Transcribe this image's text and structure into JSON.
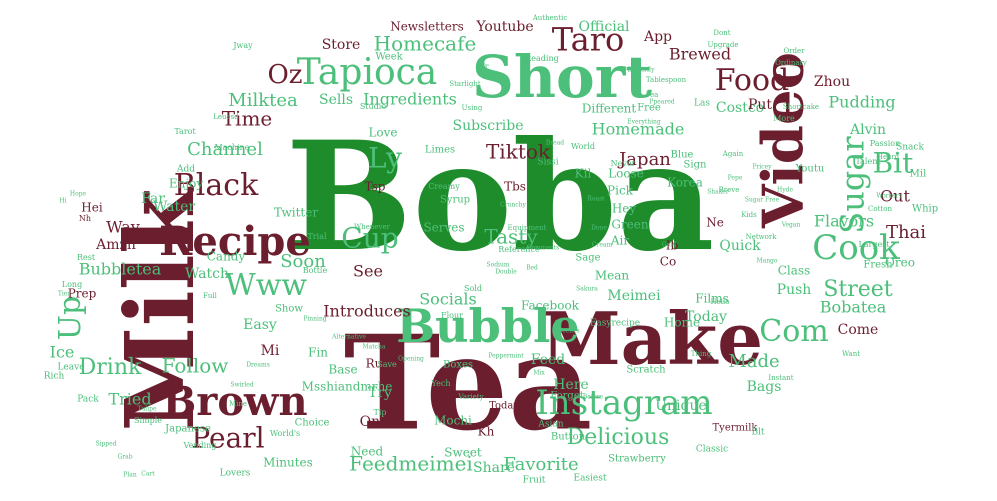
{
  "palette": {
    "green": "#1f8c2b",
    "maroon": "#6b1e2e",
    "light_green": "#4cbf7a"
  },
  "words": [
    {
      "text": "Boba",
      "color": "green"
    },
    {
      "text": "Tea",
      "color": "maroon"
    },
    {
      "text": "Milk",
      "color": "maroon"
    },
    {
      "text": "Make",
      "color": "maroon"
    },
    {
      "text": "Short",
      "color": "light_green"
    },
    {
      "text": "Video",
      "color": "maroon"
    },
    {
      "text": "Recipe",
      "color": "maroon"
    },
    {
      "text": "Brown",
      "color": "maroon"
    },
    {
      "text": "Bubble",
      "color": "light_green"
    },
    {
      "text": "Tapioca",
      "color": "light_green"
    },
    {
      "text": "Instagram",
      "color": "light_green"
    },
    {
      "text": "Food",
      "color": "maroon"
    },
    {
      "text": "Sugar",
      "color": "light_green"
    },
    {
      "text": "Cook",
      "color": "light_green"
    },
    {
      "text": "Taro",
      "color": "maroon"
    },
    {
      "text": "Black",
      "color": "maroon"
    },
    {
      "text": "Com",
      "color": "light_green"
    },
    {
      "text": "Pearl",
      "color": "maroon"
    },
    {
      "text": "Up",
      "color": "light_green"
    },
    {
      "text": "Www",
      "color": "light_green"
    },
    {
      "text": "Cup",
      "color": "light_green"
    },
    {
      "text": "Ly",
      "color": "light_green"
    },
    {
      "text": "Bit",
      "color": "light_green"
    },
    {
      "text": "Oz",
      "color": "maroon"
    },
    {
      "text": "Street",
      "color": "light_green"
    },
    {
      "text": "Drink",
      "color": "light_green"
    },
    {
      "text": "Delicious",
      "color": "light_green"
    },
    {
      "text": "Homecafe",
      "color": "light_green"
    },
    {
      "text": "Tiktok",
      "color": "maroon"
    },
    {
      "text": "Time",
      "color": "maroon"
    },
    {
      "text": "Feedmeimei",
      "color": "light_green"
    },
    {
      "text": "Channel",
      "color": "light_green"
    },
    {
      "text": "Follow",
      "color": "light_green"
    },
    {
      "text": "Tasty",
      "color": "light_green"
    },
    {
      "text": "Made",
      "color": "light_green"
    },
    {
      "text": "Japan",
      "color": "maroon"
    },
    {
      "text": "Milktea",
      "color": "light_green"
    },
    {
      "text": "Bubbletea",
      "color": "light_green"
    },
    {
      "text": "Favorite",
      "color": "light_green"
    },
    {
      "text": "Socials",
      "color": "light_green"
    },
    {
      "text": "Introduces",
      "color": "maroon"
    },
    {
      "text": "Soon",
      "color": "light_green"
    },
    {
      "text": "Way",
      "color": "maroon"
    },
    {
      "text": "See",
      "color": "maroon"
    },
    {
      "text": "Tried",
      "color": "light_green"
    },
    {
      "text": "Brewed",
      "color": "maroon"
    },
    {
      "text": "Homemade",
      "color": "light_green"
    },
    {
      "text": "Pudding",
      "color": "light_green"
    },
    {
      "text": "Flavors",
      "color": "light_green"
    },
    {
      "text": "Bobatea",
      "color": "light_green"
    },
    {
      "text": "Thai",
      "color": "maroon"
    },
    {
      "text": "Ingredients",
      "color": "light_green"
    },
    {
      "text": "Sells",
      "color": "light_green"
    },
    {
      "text": "Store",
      "color": "maroon"
    },
    {
      "text": "Youtube",
      "color": "maroon"
    },
    {
      "text": "Official",
      "color": "light_green"
    },
    {
      "text": "Newsletters",
      "color": "maroon"
    },
    {
      "text": "App",
      "color": "maroon"
    },
    {
      "text": "Costco",
      "color": "light_green"
    },
    {
      "text": "Zhou",
      "color": "maroon"
    },
    {
      "text": "Alvin",
      "color": "light_green"
    },
    {
      "text": "Out",
      "color": "maroon"
    },
    {
      "text": "Push",
      "color": "light_green"
    },
    {
      "text": "Today",
      "color": "light_green"
    },
    {
      "text": "Come",
      "color": "maroon"
    },
    {
      "text": "Films",
      "color": "light_green"
    },
    {
      "text": "Meimei",
      "color": "light_green"
    },
    {
      "text": "Facebook",
      "color": "light_green"
    },
    {
      "text": "Feed",
      "color": "light_green"
    },
    {
      "text": "Here",
      "color": "light_green"
    },
    {
      "text": "Unique",
      "color": "light_green"
    },
    {
      "text": "Bags",
      "color": "light_green"
    },
    {
      "text": "Share",
      "color": "light_green"
    },
    {
      "text": "Minutes",
      "color": "light_green"
    },
    {
      "text": "Mochi",
      "color": "light_green"
    },
    {
      "text": "Sweet",
      "color": "light_green"
    },
    {
      "text": "Try",
      "color": "light_green"
    },
    {
      "text": "One",
      "color": "maroon"
    },
    {
      "text": "Need",
      "color": "light_green"
    },
    {
      "text": "Ice",
      "color": "light_green"
    },
    {
      "text": "Water",
      "color": "light_green"
    },
    {
      "text": "Enjoy",
      "color": "light_green"
    },
    {
      "text": "Easy",
      "color": "light_green"
    },
    {
      "text": "Watch",
      "color": "light_green"
    },
    {
      "text": "Candy",
      "color": "light_green"
    },
    {
      "text": "Prep",
      "color": "maroon"
    },
    {
      "text": "Far",
      "color": "light_green"
    },
    {
      "text": "Amzn",
      "color": "maroon"
    },
    {
      "text": "Twitter",
      "color": "light_green"
    },
    {
      "text": "Love",
      "color": "light_green"
    },
    {
      "text": "Subscribe",
      "color": "light_green"
    },
    {
      "text": "Different",
      "color": "light_green"
    },
    {
      "text": "Quick",
      "color": "light_green"
    },
    {
      "text": "Korea",
      "color": "light_green"
    },
    {
      "text": "Pick",
      "color": "light_green"
    },
    {
      "text": "Green",
      "color": "light_green"
    },
    {
      "text": "Kil",
      "color": "light_green"
    },
    {
      "text": "Tbs",
      "color": "maroon"
    },
    {
      "text": "Tsp",
      "color": "maroon"
    },
    {
      "text": "Loose",
      "color": "light_green"
    },
    {
      "text": "Mean",
      "color": "light_green"
    },
    {
      "text": "Home",
      "color": "light_green"
    },
    {
      "text": "Serves",
      "color": "light_green"
    },
    {
      "text": "Base",
      "color": "light_green"
    },
    {
      "text": "Ru",
      "color": "maroon"
    },
    {
      "text": "Mi",
      "color": "maroon"
    },
    {
      "text": "Msshiandmrhe",
      "color": "light_green"
    },
    {
      "text": "Kh",
      "color": "maroon"
    },
    {
      "text": "Fin",
      "color": "light_green"
    },
    {
      "text": "Hey",
      "color": "light_green"
    },
    {
      "text": "Air",
      "color": "light_green"
    },
    {
      "text": "Put",
      "color": "maroon"
    },
    {
      "text": "Hei",
      "color": "maroon"
    },
    {
      "text": "Ib",
      "color": "maroon"
    },
    {
      "text": "Co",
      "color": "maroon"
    },
    {
      "text": "Ne",
      "color": "maroon"
    },
    {
      "text": "Class",
      "color": "light_green"
    },
    {
      "text": "Oreo",
      "color": "light_green"
    },
    {
      "text": "Fresh",
      "color": "light_green"
    },
    {
      "text": "Whip",
      "color": "light_green"
    },
    {
      "text": "Mil",
      "color": "light_green"
    },
    {
      "text": "Youtu",
      "color": "light_green"
    },
    {
      "text": "Snack",
      "color": "light_green"
    },
    {
      "text": "Scratch",
      "color": "light_green"
    },
    {
      "text": "Strawberry",
      "color": "light_green"
    },
    {
      "text": "Classic",
      "color": "light_green"
    },
    {
      "text": "Asian",
      "color": "light_green"
    },
    {
      "text": "Button",
      "color": "light_green"
    },
    {
      "text": "Easiest",
      "color": "light_green"
    },
    {
      "text": "Fruit",
      "color": "light_green"
    },
    {
      "text": "Lovers",
      "color": "light_green"
    },
    {
      "text": "Japanese",
      "color": "light_green"
    },
    {
      "text": "Choice",
      "color": "light_green"
    },
    {
      "text": "Leave",
      "color": "light_green"
    },
    {
      "text": "Rich",
      "color": "light_green"
    },
    {
      "text": "Pack",
      "color": "light_green"
    },
    {
      "text": "Simple",
      "color": "light_green"
    },
    {
      "text": "Limes",
      "color": "light_green"
    },
    {
      "text": "Studio",
      "color": "light_green"
    },
    {
      "text": "Reading",
      "color": "light_green"
    },
    {
      "text": "Week",
      "color": "light_green"
    },
    {
      "text": "Free",
      "color": "light_green"
    },
    {
      "text": "Blue",
      "color": "light_green"
    },
    {
      "text": "Sign",
      "color": "light_green"
    },
    {
      "text": "Syrup",
      "color": "light_green"
    },
    {
      "text": "Sage",
      "color": "light_green"
    },
    {
      "text": "Creamy",
      "color": "light_green"
    },
    {
      "text": "Equipment",
      "color": "light_green"
    },
    {
      "text": "Full",
      "color": "light_green"
    },
    {
      "text": "Show",
      "color": "light_green"
    },
    {
      "text": "Tyermilk",
      "color": "maroon"
    },
    {
      "text": "Today's",
      "color": "maroon"
    },
    {
      "text": "Forget",
      "color": "light_green"
    },
    {
      "text": "Boxes",
      "color": "light_green"
    },
    {
      "text": "Save",
      "color": "light_green"
    },
    {
      "text": "Tip",
      "color": "light_green"
    },
    {
      "text": "World's",
      "color": "light_green"
    },
    {
      "text": "Vending",
      "color": "light_green"
    },
    {
      "text": "Machine",
      "color": "light_green"
    },
    {
      "text": "Trial",
      "color": "light_green"
    },
    {
      "text": "Bottle",
      "color": "light_green"
    },
    {
      "text": "Largest",
      "color": "light_green"
    },
    {
      "text": "Talent",
      "color": "light_green"
    },
    {
      "text": "Passion",
      "color": "light_green"
    },
    {
      "text": "Shortcake",
      "color": "light_green"
    },
    {
      "text": "Heard",
      "color": "light_green"
    },
    {
      "text": "Instant",
      "color": "light_green"
    },
    {
      "text": "Want",
      "color": "light_green"
    },
    {
      "text": "Reference",
      "color": "light_green"
    },
    {
      "text": "Sold",
      "color": "light_green"
    },
    {
      "text": "Flour",
      "color": "light_green"
    },
    {
      "text": "Yech",
      "color": "light_green"
    },
    {
      "text": "Variety",
      "color": "light_green"
    },
    {
      "text": "Sissi",
      "color": "light_green"
    },
    {
      "text": "World",
      "color": "light_green"
    },
    {
      "text": "Never",
      "color": "light_green"
    },
    {
      "text": "Las",
      "color": "light_green"
    },
    {
      "text": "More",
      "color": "light_green"
    },
    {
      "text": "Dont",
      "color": "light_green"
    },
    {
      "text": "Tarot",
      "color": "light_green"
    },
    {
      "text": "Rest",
      "color": "light_green"
    },
    {
      "text": "Long",
      "color": "light_green"
    },
    {
      "text": "Add",
      "color": "light_green"
    },
    {
      "text": "Blt",
      "color": "light_green"
    },
    {
      "text": "Easyrecipe",
      "color": "light_green"
    },
    {
      "text": "Nh",
      "color": "maroon"
    },
    {
      "text": "Leuesd",
      "color": "light_green"
    },
    {
      "text": "Jway",
      "color": "light_green"
    },
    {
      "text": "Ordinary",
      "color": "light_green"
    },
    {
      "text": "Order",
      "color": "light_green"
    },
    {
      "text": "Upgrade",
      "color": "light_green"
    },
    {
      "text": "Tablespoon",
      "color": "light_green"
    },
    {
      "text": "Authentic",
      "color": "light_green"
    },
    {
      "text": "Tr",
      "color": "light_green"
    },
    {
      "text": "Starlight",
      "color": "light_green"
    },
    {
      "text": "Using",
      "color": "light_green"
    },
    {
      "text": "Everything",
      "color": "light_green"
    },
    {
      "text": "Bread",
      "color": "light_green"
    },
    {
      "text": "Butterfly",
      "color": "light_green"
    },
    {
      "text": "Pea",
      "color": "light_green"
    },
    {
      "text": "Ppeared",
      "color": "light_green"
    },
    {
      "text": "Again",
      "color": "light_green"
    },
    {
      "text": "Pepe",
      "color": "light_green"
    },
    {
      "text": "Pricey",
      "color": "light_green"
    },
    {
      "text": "Breve",
      "color": "light_green"
    },
    {
      "text": "Sugar Free",
      "color": "light_green"
    },
    {
      "text": "Hyde",
      "color": "light_green"
    },
    {
      "text": "Vegan",
      "color": "light_green"
    },
    {
      "text": "Cotton",
      "color": "light_green"
    },
    {
      "text": "Workers",
      "color": "light_green"
    },
    {
      "text": "Network",
      "color": "light_green"
    },
    {
      "text": "Mango",
      "color": "light_green"
    },
    {
      "text": "Kids",
      "color": "light_green"
    },
    {
      "text": "Shaker",
      "color": "light_green"
    },
    {
      "text": "Done",
      "color": "light_green"
    },
    {
      "text": "Peppermint",
      "color": "light_green"
    },
    {
      "text": "Mix",
      "color": "light_green"
    },
    {
      "text": "Thing",
      "color": "light_green"
    },
    {
      "text": "Hello",
      "color": "light_green"
    },
    {
      "text": "Pinning",
      "color": "light_green"
    },
    {
      "text": "Opening",
      "color": "light_green"
    },
    {
      "text": "Before",
      "color": "light_green"
    },
    {
      "text": "Sakura",
      "color": "light_green"
    },
    {
      "text": "Scenes",
      "color": "light_green"
    },
    {
      "text": "Comments",
      "color": "light_green"
    },
    {
      "text": "Sodium",
      "color": "light_green"
    },
    {
      "text": "Double",
      "color": "light_green"
    },
    {
      "text": "Bed",
      "color": "light_green"
    },
    {
      "text": "Cream",
      "color": "light_green"
    },
    {
      "text": "Gold",
      "color": "light_green"
    },
    {
      "text": "Roast",
      "color": "light_green"
    },
    {
      "text": "Crunchy",
      "color": "light_green"
    },
    {
      "text": "Whenever",
      "color": "light_green"
    },
    {
      "text": "Alternative",
      "color": "light_green"
    },
    {
      "text": "Matcha",
      "color": "light_green"
    },
    {
      "text": "Dreams",
      "color": "light_green"
    },
    {
      "text": "Swirled",
      "color": "light_green"
    },
    {
      "text": "Mine",
      "color": "light_green"
    },
    {
      "text": "Tulipe",
      "color": "light_green"
    },
    {
      "text": "Hope",
      "color": "light_green"
    },
    {
      "text": "Hi",
      "color": "light_green"
    },
    {
      "text": "Tier",
      "color": "light_green"
    },
    {
      "text": "Sipped",
      "color": "light_green"
    },
    {
      "text": "Grab",
      "color": "light_green"
    },
    {
      "text": "Plan",
      "color": "light_green"
    },
    {
      "text": "Cart",
      "color": "light_green"
    }
  ]
}
